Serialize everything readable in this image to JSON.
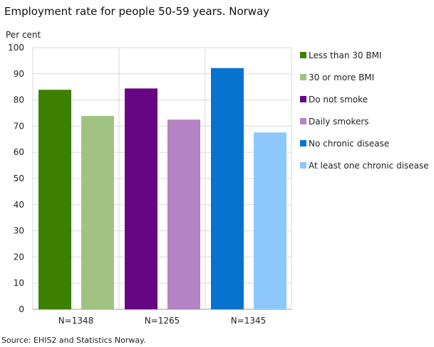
{
  "chart_data": {
    "type": "bar",
    "title": "Employment rate for people 50-59 years. Norway",
    "ylabel": "Per cent",
    "xlabel": "",
    "ylim": [
      0,
      100
    ],
    "yticks": [
      0,
      10,
      20,
      30,
      40,
      50,
      60,
      70,
      80,
      90,
      100
    ],
    "grid": true,
    "legend_placement": "right",
    "categories": [
      "N=1348",
      "N=1265",
      "N=1345"
    ],
    "series": [
      {
        "name": "Less than 30 BMI",
        "color": "#3d8000",
        "group": 0,
        "value": 83.9
      },
      {
        "name": "30 or more BMI",
        "color": "#a0c382",
        "group": 0,
        "value": 73.9
      },
      {
        "name": "Do not smoke",
        "color": "#670685",
        "group": 1,
        "value": 84.4
      },
      {
        "name": "Daily smokers",
        "color": "#b383c3",
        "group": 1,
        "value": 72.5
      },
      {
        "name": "No chronic disease",
        "color": "#0773cf",
        "group": 2,
        "value": 92.2
      },
      {
        "name": "At least one chronic disease",
        "color": "#8ec8fb",
        "group": 2,
        "value": 67.6
      }
    ],
    "source": "Source: EHIS2 and Statistics Norway."
  }
}
